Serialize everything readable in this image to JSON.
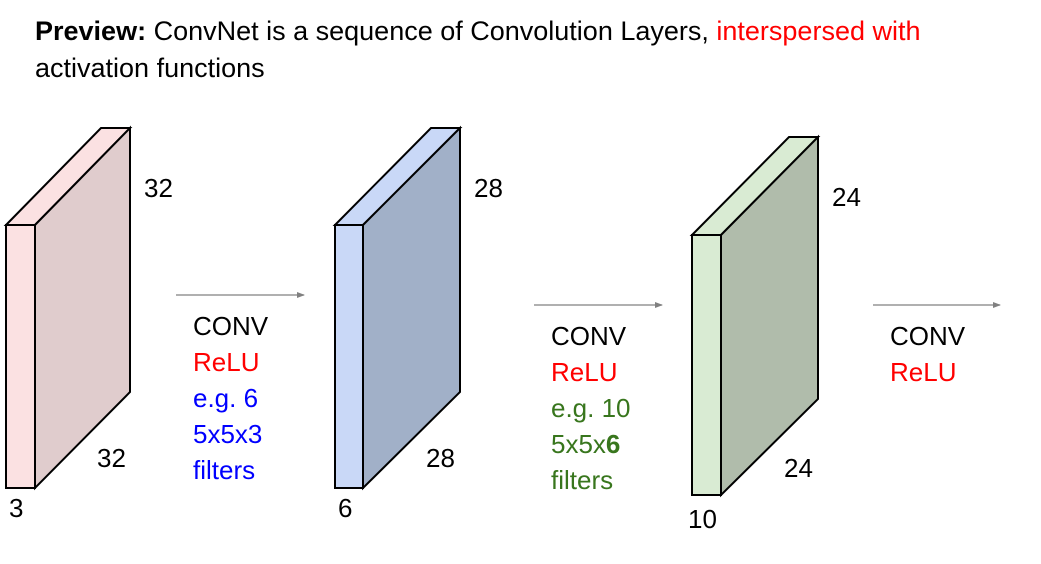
{
  "title": {
    "bold": "Preview:",
    "line1_black": " ConvNet is a sequence of Convolution Layers, ",
    "line1_red": "interspersed with",
    "line2_red": "activation functions"
  },
  "colors": {
    "black": "#000000",
    "red": "#ff0000",
    "blue": "#0000ff",
    "green": "#38761d",
    "arrow": "#808080"
  },
  "volumes": [
    {
      "name": "input",
      "height_label": "32",
      "width_label": "32",
      "depth_label": "3",
      "front_color": "#fbe1e2",
      "side_color": "#e0cccd"
    },
    {
      "name": "conv1",
      "height_label": "28",
      "width_label": "28",
      "depth_label": "6",
      "front_color": "#c9d8f7",
      "side_color": "#a1b0c8"
    },
    {
      "name": "conv2",
      "height_label": "24",
      "width_label": "24",
      "depth_label": "10",
      "front_color": "#d9ebd3",
      "side_color": "#b0bcab"
    }
  ],
  "steps": [
    {
      "conv": "CONV",
      "relu": "ReLU",
      "eg": "e.g. 6",
      "filter_size": "5x5x3",
      "filter_size_bold": "",
      "filters": "filters"
    },
    {
      "conv": "CONV",
      "relu": "ReLU",
      "eg": "e.g. 10",
      "filter_size": "5x5x",
      "filter_size_bold": "6",
      "filters": "filters"
    },
    {
      "conv": "CONV",
      "relu": "ReLU"
    }
  ]
}
